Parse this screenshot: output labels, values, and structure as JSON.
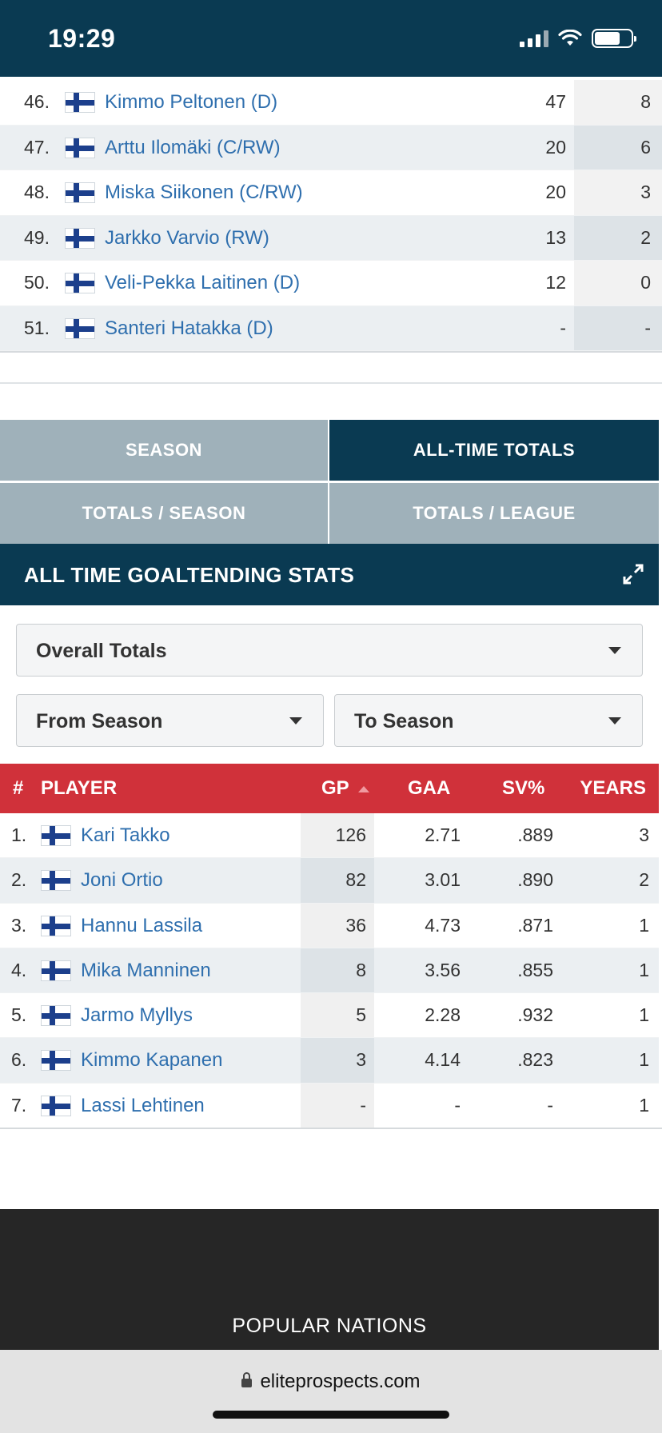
{
  "status_bar": {
    "time": "19:29"
  },
  "skater_rows": [
    {
      "rank": "46.",
      "name": "Kimmo Peltonen (D)",
      "gp": "47",
      "g": "8"
    },
    {
      "rank": "47.",
      "name": "Arttu Ilomäki (C/RW)",
      "gp": "20",
      "g": "6"
    },
    {
      "rank": "48.",
      "name": "Miska Siikonen (C/RW)",
      "gp": "20",
      "g": "3"
    },
    {
      "rank": "49.",
      "name": "Jarkko Varvio (RW)",
      "gp": "13",
      "g": "2"
    },
    {
      "rank": "50.",
      "name": "Veli-Pekka Laitinen (D)",
      "gp": "12",
      "g": "0"
    },
    {
      "rank": "51.",
      "name": "Santeri Hatakka (D)",
      "gp": "-",
      "g": "-"
    }
  ],
  "tabs": [
    {
      "label": "SEASON",
      "active": false
    },
    {
      "label": "ALL-TIME TOTALS",
      "active": true
    },
    {
      "label": "TOTALS / SEASON",
      "active": false
    },
    {
      "label": "TOTALS / LEAGUE",
      "active": false
    }
  ],
  "section": {
    "title": "ALL TIME GOALTENDING STATS"
  },
  "filters": {
    "overall": "Overall Totals",
    "from_season": "From Season",
    "to_season": "To Season"
  },
  "goalie_table": {
    "headers": {
      "num": "#",
      "player": "PLAYER",
      "gp": "GP",
      "gaa": "GAA",
      "sv": "SV%",
      "years": "YEARS"
    },
    "rows": [
      {
        "rank": "1.",
        "name": "Kari Takko",
        "gp": "126",
        "gaa": "2.71",
        "sv": ".889",
        "years": "3"
      },
      {
        "rank": "2.",
        "name": "Joni Ortio",
        "gp": "82",
        "gaa": "3.01",
        "sv": ".890",
        "years": "2"
      },
      {
        "rank": "3.",
        "name": "Hannu Lassila",
        "gp": "36",
        "gaa": "4.73",
        "sv": ".871",
        "years": "1"
      },
      {
        "rank": "4.",
        "name": "Mika Manninen",
        "gp": "8",
        "gaa": "3.56",
        "sv": ".855",
        "years": "1"
      },
      {
        "rank": "5.",
        "name": "Jarmo Myllys",
        "gp": "5",
        "gaa": "2.28",
        "sv": ".932",
        "years": "1"
      },
      {
        "rank": "6.",
        "name": "Kimmo Kapanen",
        "gp": "3",
        "gaa": "4.14",
        "sv": ".823",
        "years": "1"
      },
      {
        "rank": "7.",
        "name": "Lassi Lehtinen",
        "gp": "-",
        "gaa": "-",
        "sv": "-",
        "years": "1"
      }
    ]
  },
  "footer": {
    "heading": "POPULAR NATIONS"
  },
  "browser": {
    "url": "eliteprospects.com"
  },
  "colors": {
    "navy": "#0a3a52",
    "tab_inactive": "#9fb1ba",
    "header_red": "#d0313a",
    "link_blue": "#2f6fae"
  },
  "icons": {
    "flag": "finland-flag-icon",
    "expand": "expand-icon",
    "lock": "lock-icon",
    "sort": "sort-up-icon"
  }
}
